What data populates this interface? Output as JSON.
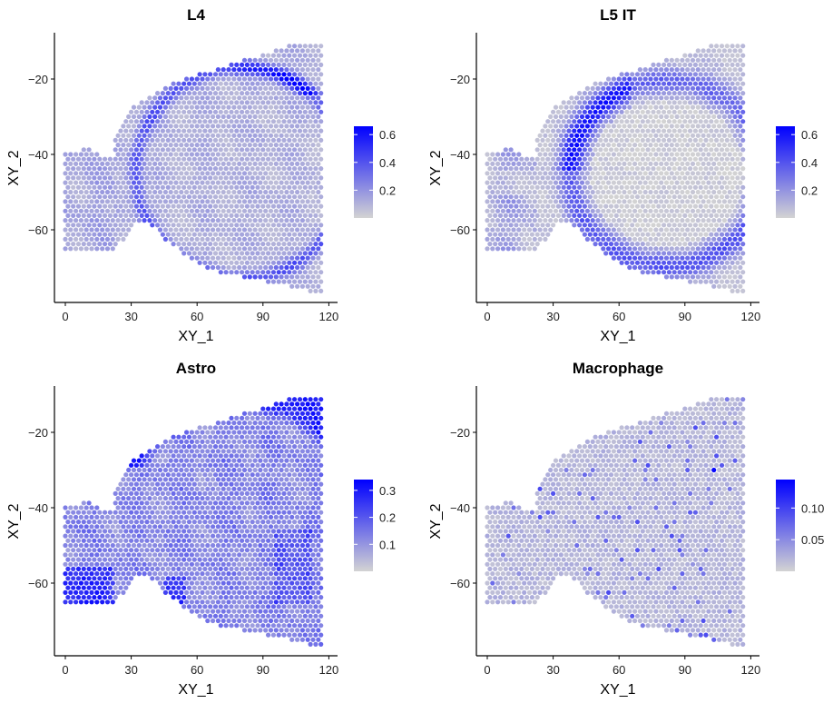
{
  "chart_data": [
    {
      "type": "scatter",
      "title": "L4",
      "xlabel": "XY_1",
      "ylabel": "XY_2",
      "xlim": [
        -4,
        124
      ],
      "ylim": [
        -78,
        -7
      ],
      "xticks": [
        "0",
        "30",
        "60",
        "90",
        "120"
      ],
      "xtick_values": [
        0,
        30,
        60,
        90,
        120
      ],
      "yticks": [
        "−20",
        "−40",
        "−60"
      ],
      "ytick_values": [
        -20,
        -40,
        -60
      ],
      "legend": {
        "position": "right",
        "min": 0,
        "max": 0.66,
        "ticks": [
          "0.2",
          "0.4",
          "0.6"
        ],
        "tick_values": [
          0.2,
          0.4,
          0.6
        ]
      },
      "color_low": "#D3D3D3",
      "color_high": "#0000FF",
      "pattern": "cortical layer band, strongest top-right (~0.6)"
    },
    {
      "type": "scatter",
      "title": "L5 IT",
      "xlabel": "XY_1",
      "ylabel": "XY_2",
      "xlim": [
        -4,
        124
      ],
      "ylim": [
        -78,
        -7
      ],
      "xticks": [
        "0",
        "30",
        "60",
        "90",
        "120"
      ],
      "xtick_values": [
        0,
        30,
        60,
        90,
        120
      ],
      "yticks": [
        "−20",
        "−40",
        "−60"
      ],
      "ytick_values": [
        -20,
        -40,
        -60
      ],
      "legend": {
        "position": "right",
        "min": 0,
        "max": 0.66,
        "ticks": [
          "0.2",
          "0.4",
          "0.6"
        ],
        "tick_values": [
          0.2,
          0.4,
          0.6
        ]
      },
      "color_low": "#D3D3D3",
      "color_high": "#0000FF",
      "pattern": "deeper cortical band, strongest upper-left (~0.6)"
    },
    {
      "type": "scatter",
      "title": "Astro",
      "xlabel": "XY_1",
      "ylabel": "XY_2",
      "xlim": [
        -4,
        124
      ],
      "ylim": [
        -78,
        -7
      ],
      "xticks": [
        "0",
        "30",
        "60",
        "90",
        "120"
      ],
      "xtick_values": [
        0,
        30,
        60,
        90,
        120
      ],
      "yticks": [
        "−20",
        "−40",
        "−60"
      ],
      "ytick_values": [
        -20,
        -40,
        -60
      ],
      "legend": {
        "position": "right",
        "min": 0,
        "max": 0.34,
        "ticks": [
          "0.1",
          "0.2",
          "0.3"
        ],
        "tick_values": [
          0.1,
          0.2,
          0.3
        ]
      },
      "color_low": "#D3D3D3",
      "color_high": "#0000FF",
      "pattern": "tissue surface and lower-left block highest (~0.3)"
    },
    {
      "type": "scatter",
      "title": "Macrophage",
      "xlabel": "XY_1",
      "ylabel": "XY_2",
      "xlim": [
        -4,
        124
      ],
      "ylim": [
        -78,
        -7
      ],
      "xticks": [
        "0",
        "30",
        "60",
        "90",
        "120"
      ],
      "xtick_values": [
        0,
        30,
        60,
        90,
        120
      ],
      "yticks": [
        "−20",
        "−40",
        "−60"
      ],
      "ytick_values": [
        -20,
        -40,
        -60
      ],
      "legend": {
        "position": "right",
        "min": 0,
        "max": 0.145,
        "ticks": [
          "0.05",
          "0.10"
        ],
        "tick_values": [
          0.05,
          0.1
        ]
      },
      "color_low": "#D3D3D3",
      "color_high": "#0000FF",
      "pattern": "sparse low values, single peak near (104, -30) ~0.14"
    }
  ],
  "tissue_outline": [
    [
      0,
      -39
    ],
    [
      8,
      -39
    ],
    [
      10,
      -37.5
    ],
    [
      12,
      -39
    ],
    [
      17,
      -40.5
    ],
    [
      22,
      -40
    ],
    [
      22,
      -35
    ],
    [
      28,
      -29
    ],
    [
      36,
      -25
    ],
    [
      49,
      -20.7
    ],
    [
      63,
      -18.3
    ],
    [
      73,
      -16.4
    ],
    [
      87,
      -14
    ],
    [
      99,
      -11.6
    ],
    [
      105,
      -10.5
    ],
    [
      115,
      -10.3
    ],
    [
      118,
      -11.8
    ],
    [
      116.5,
      -14
    ],
    [
      116.5,
      -76.5
    ],
    [
      113,
      -76.5
    ],
    [
      98,
      -74.5
    ],
    [
      82,
      -72.8
    ],
    [
      67,
      -70.8
    ],
    [
      55,
      -66.8
    ],
    [
      46.7,
      -63.2
    ],
    [
      41,
      -59.8
    ],
    [
      38,
      -58.6
    ],
    [
      33,
      -58.2
    ],
    [
      28,
      -61.2
    ],
    [
      24,
      -64.5
    ],
    [
      20,
      -65.5
    ],
    [
      0,
      -65.5
    ]
  ]
}
